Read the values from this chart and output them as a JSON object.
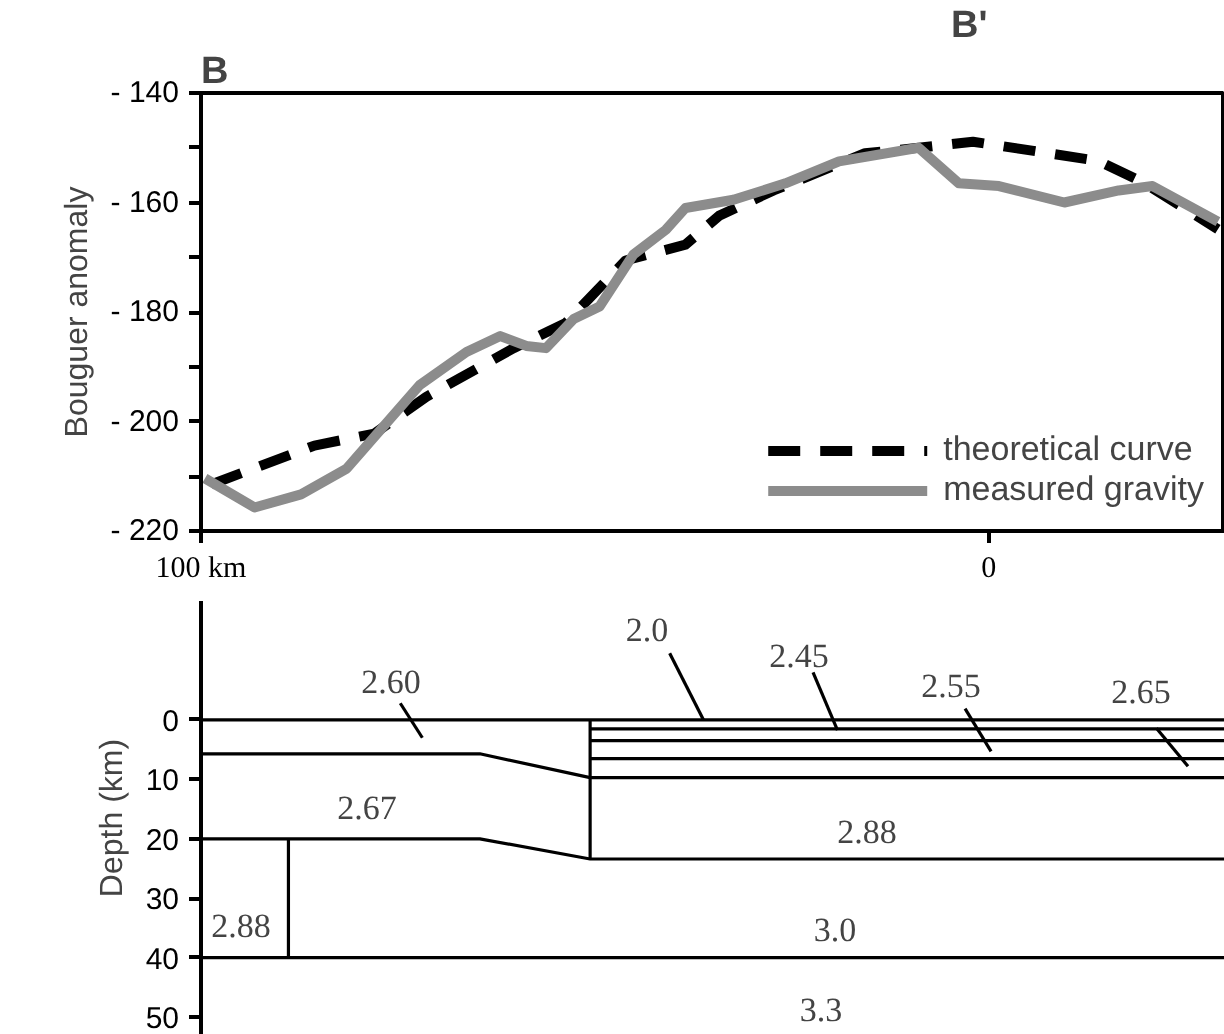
{
  "chart_data": [
    {
      "type": "line",
      "annotations": [
        "B",
        "B'"
      ],
      "ylabel": "Bouguer anomaly",
      "xlim": [
        100,
        -30
      ],
      "xticks": [
        {
          "value": 100,
          "label": "100 km"
        },
        0
      ],
      "ylim": [
        -220,
        -140
      ],
      "yticks": [
        {
          "value": -220,
          "label": "- 220"
        },
        {
          "value": -210,
          "label": null
        },
        {
          "value": -200,
          "label": "- 200"
        },
        {
          "value": -190,
          "label": null
        },
        {
          "value": -180,
          "label": "- 180"
        },
        {
          "value": -170,
          "label": null
        },
        {
          "value": -160,
          "label": "- 160"
        },
        {
          "value": -150,
          "label": null
        },
        {
          "value": -140,
          "label": "- 140"
        }
      ],
      "grid": false,
      "legend": "bottom right",
      "series": [
        {
          "name": "theoretical curve",
          "color": "#000000",
          "line_style": "dashed",
          "x": [
            98.7,
            85.6,
            78,
            71.4,
            60.3,
            53.7,
            46.1,
            38.5,
            34.2,
            27.3,
            15.7,
            8.9,
            2,
            -6.3,
            -13.9,
            -19.7,
            -29.1
          ],
          "values": [
            -211.5,
            -204.4,
            -202.2,
            -195.5,
            -186.6,
            -182,
            -170.6,
            -167.7,
            -162.4,
            -157.8,
            -151,
            -150,
            -148.9,
            -150.7,
            -152.4,
            -156.4,
            -164.9
          ]
        },
        {
          "name": "measured gravity",
          "color": "#8c8c8c",
          "line_style": "solid",
          "x": [
            99.5,
            93.2,
            87.3,
            81.5,
            77.2,
            72.2,
            66.3,
            62,
            58.7,
            56.2,
            52.7,
            49.4,
            45.1,
            41,
            38.5,
            32.4,
            25.8,
            19,
            8.9,
            3.8,
            -1.3,
            -9.6,
            -16.5,
            -20.8,
            -29.1
          ],
          "values": [
            -210.4,
            -215.7,
            -213.3,
            -208.6,
            -201.5,
            -193.3,
            -187.3,
            -184.4,
            -186.2,
            -186.6,
            -181.3,
            -179,
            -169.5,
            -165,
            -161,
            -159.5,
            -156.5,
            -152.5,
            -150,
            -156.5,
            -157,
            -160,
            -157.8,
            -157,
            -163.5
          ]
        }
      ]
    },
    {
      "type": "line",
      "ylabel": "Depth (km)",
      "xlim": [
        100,
        -30
      ],
      "ylim": [
        53,
        -20
      ],
      "yticks": [
        0,
        10,
        20,
        30,
        40,
        50
      ],
      "tick_labels": "y",
      "grid": false,
      "legend": false,
      "annotations": [
        "2.60",
        "2.0",
        "2.45",
        "2.55",
        "2.65",
        "2.67",
        "2.88",
        "2.88",
        "3.0",
        "3.3"
      ],
      "series": [
        {
          "color": "#000000",
          "x": [
            100,
            -30
          ],
          "values": [
            0,
            0
          ]
        },
        {
          "color": "#000000",
          "x": [
            100,
            64.6,
            50.6,
            -30
          ],
          "values": [
            5.7,
            5.7,
            9.7,
            9.7
          ]
        },
        {
          "color": "#000000",
          "x": [
            100,
            64.6,
            50.6,
            -30
          ],
          "values": [
            20,
            20,
            23.4,
            23.4
          ]
        },
        {
          "color": "#000000",
          "x": [
            100,
            -30
          ],
          "values": [
            40,
            40
          ]
        },
        {
          "color": "#000000",
          "x": [
            50.6,
            50.6
          ],
          "values": [
            0,
            23.4
          ]
        },
        {
          "color": "#000000",
          "x": [
            88.9,
            88.9
          ],
          "values": [
            20,
            40
          ]
        },
        {
          "color": "#000000",
          "x": [
            50.6,
            -30
          ],
          "values": [
            1.5,
            1.5
          ]
        },
        {
          "color": "#000000",
          "x": [
            50.6,
            -30
          ],
          "values": [
            3.5,
            3.5
          ]
        },
        {
          "color": "#000000",
          "x": [
            50.6,
            -30
          ],
          "values": [
            6.5,
            6.5
          ]
        },
        {
          "color": "#000000",
          "x": [
            74.7,
            71.9
          ],
          "values": [
            -2.8,
            3
          ]
        },
        {
          "color": "#000000",
          "x": [
            40.5,
            36.2
          ],
          "values": [
            -11.2,
            0
          ]
        },
        {
          "color": "#000000",
          "x": [
            22.3,
            19.2
          ],
          "values": [
            -8,
            1.7
          ]
        },
        {
          "color": "#000000",
          "x": [
            3,
            -0.3
          ],
          "values": [
            -1.9,
            5.3
          ]
        },
        {
          "color": "#000000",
          "x": [
            -21.3,
            -25.3
          ],
          "values": [
            1.4,
            7.8
          ]
        }
      ]
    }
  ]
}
